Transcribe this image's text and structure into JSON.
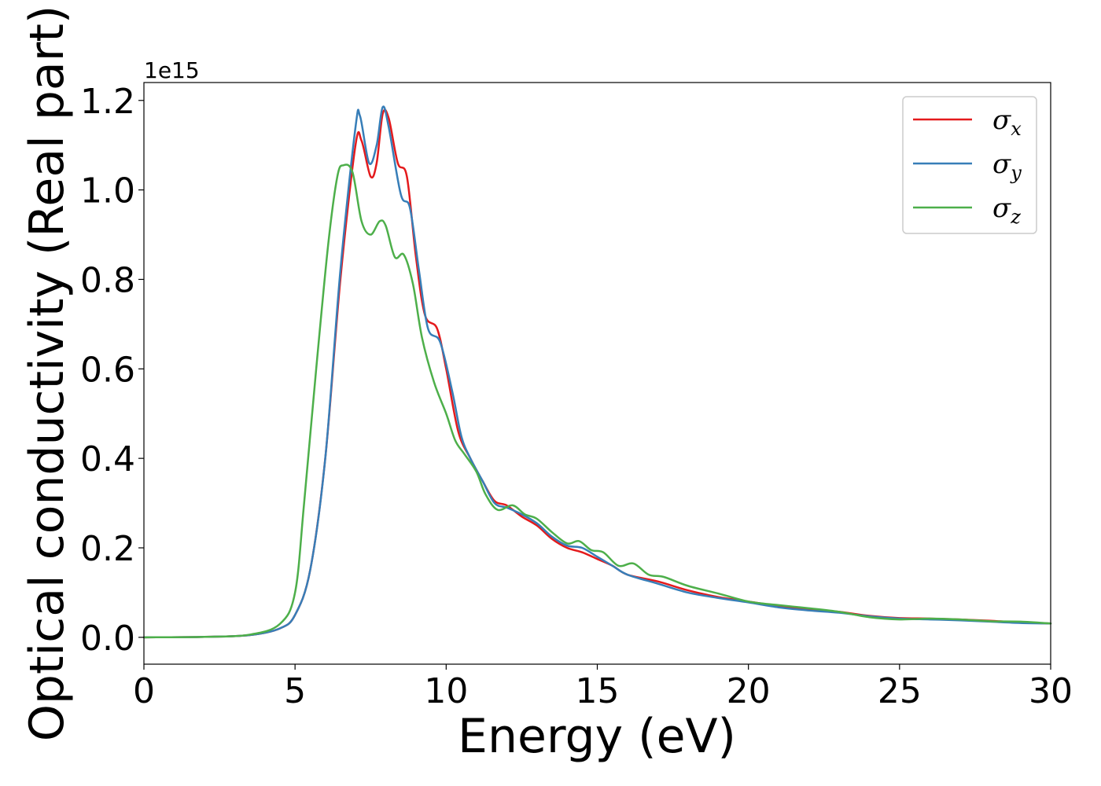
{
  "chart_data": {
    "type": "line",
    "xlabel": "Energy (eV)",
    "ylabel": "Optical conductivity (Real part)",
    "y_offset_text": "1e15",
    "xlim": [
      0,
      30
    ],
    "ylim": [
      -0.06,
      1.24
    ],
    "x_ticks": [
      0,
      5,
      10,
      15,
      20,
      25,
      30
    ],
    "x_tick_labels": [
      "0",
      "5",
      "10",
      "15",
      "20",
      "25",
      "30"
    ],
    "y_ticks": [
      0.0,
      0.2,
      0.4,
      0.6,
      0.8,
      1.0,
      1.2
    ],
    "y_tick_labels": [
      "0.0",
      "0.2",
      "0.4",
      "0.6",
      "0.8",
      "1.0",
      "1.2"
    ],
    "grid": false,
    "legend_position": "top-right",
    "series": [
      {
        "name": "σx",
        "symbol": "σ",
        "subscript": "x",
        "color": "#e41a1c",
        "points": [
          [
            0,
            0
          ],
          [
            2,
            0.001
          ],
          [
            3.5,
            0.005
          ],
          [
            4.5,
            0.02
          ],
          [
            5,
            0.05
          ],
          [
            5.5,
            0.15
          ],
          [
            6,
            0.4
          ],
          [
            6.5,
            0.8
          ],
          [
            7,
            1.1
          ],
          [
            7.2,
            1.11
          ],
          [
            7.5,
            1.03
          ],
          [
            7.7,
            1.06
          ],
          [
            7.9,
            1.17
          ],
          [
            8.1,
            1.16
          ],
          [
            8.4,
            1.06
          ],
          [
            8.7,
            1.03
          ],
          [
            9,
            0.85
          ],
          [
            9.3,
            0.72
          ],
          [
            9.7,
            0.69
          ],
          [
            10,
            0.6
          ],
          [
            10.4,
            0.46
          ],
          [
            10.8,
            0.4
          ],
          [
            11.2,
            0.35
          ],
          [
            11.6,
            0.305
          ],
          [
            12,
            0.295
          ],
          [
            12.5,
            0.27
          ],
          [
            13,
            0.25
          ],
          [
            13.5,
            0.22
          ],
          [
            14,
            0.2
          ],
          [
            14.5,
            0.19
          ],
          [
            15,
            0.175
          ],
          [
            15.5,
            0.16
          ],
          [
            16,
            0.14
          ],
          [
            17,
            0.125
          ],
          [
            18,
            0.105
          ],
          [
            19,
            0.09
          ],
          [
            20,
            0.08
          ],
          [
            21,
            0.07
          ],
          [
            22,
            0.062
          ],
          [
            23,
            0.057
          ],
          [
            24,
            0.048
          ],
          [
            25,
            0.043
          ],
          [
            26,
            0.042
          ],
          [
            27,
            0.04
          ],
          [
            28,
            0.037
          ],
          [
            29,
            0.033
          ],
          [
            30,
            0.031
          ]
        ]
      },
      {
        "name": "σy",
        "symbol": "σ",
        "subscript": "y",
        "color": "#377eb8",
        "points": [
          [
            0,
            0
          ],
          [
            2,
            0.001
          ],
          [
            3.5,
            0.005
          ],
          [
            4.5,
            0.02
          ],
          [
            5,
            0.05
          ],
          [
            5.5,
            0.15
          ],
          [
            6,
            0.4
          ],
          [
            6.5,
            0.82
          ],
          [
            7,
            1.14
          ],
          [
            7.15,
            1.165
          ],
          [
            7.45,
            1.06
          ],
          [
            7.7,
            1.1
          ],
          [
            7.9,
            1.185
          ],
          [
            8.1,
            1.14
          ],
          [
            8.5,
            0.99
          ],
          [
            8.8,
            0.96
          ],
          [
            9.1,
            0.82
          ],
          [
            9.4,
            0.69
          ],
          [
            9.8,
            0.66
          ],
          [
            10.2,
            0.55
          ],
          [
            10.5,
            0.45
          ],
          [
            10.8,
            0.4
          ],
          [
            11.2,
            0.35
          ],
          [
            11.6,
            0.3
          ],
          [
            12,
            0.29
          ],
          [
            12.5,
            0.275
          ],
          [
            13,
            0.255
          ],
          [
            13.5,
            0.225
          ],
          [
            14,
            0.205
          ],
          [
            14.5,
            0.2
          ],
          [
            15,
            0.18
          ],
          [
            15.5,
            0.16
          ],
          [
            16,
            0.14
          ],
          [
            17,
            0.12
          ],
          [
            18,
            0.1
          ],
          [
            19,
            0.088
          ],
          [
            20,
            0.078
          ],
          [
            21,
            0.067
          ],
          [
            22,
            0.06
          ],
          [
            23,
            0.055
          ],
          [
            24,
            0.047
          ],
          [
            25,
            0.042
          ],
          [
            26,
            0.04
          ],
          [
            27,
            0.038
          ],
          [
            28,
            0.035
          ],
          [
            29,
            0.032
          ],
          [
            30,
            0.031
          ]
        ]
      },
      {
        "name": "σz",
        "symbol": "σ",
        "subscript": "z",
        "color": "#4daf4a",
        "points": [
          [
            0,
            0
          ],
          [
            2,
            0.001
          ],
          [
            3.5,
            0.006
          ],
          [
            4.5,
            0.03
          ],
          [
            5,
            0.1
          ],
          [
            5.3,
            0.3
          ],
          [
            5.7,
            0.6
          ],
          [
            6.1,
            0.88
          ],
          [
            6.4,
            1.03
          ],
          [
            6.6,
            1.055
          ],
          [
            6.9,
            1.04
          ],
          [
            7.2,
            0.93
          ],
          [
            7.5,
            0.9
          ],
          [
            7.8,
            0.93
          ],
          [
            8,
            0.92
          ],
          [
            8.3,
            0.85
          ],
          [
            8.6,
            0.855
          ],
          [
            8.9,
            0.79
          ],
          [
            9.2,
            0.67
          ],
          [
            9.6,
            0.57
          ],
          [
            10,
            0.5
          ],
          [
            10.3,
            0.44
          ],
          [
            10.6,
            0.41
          ],
          [
            11,
            0.37
          ],
          [
            11.3,
            0.32
          ],
          [
            11.7,
            0.285
          ],
          [
            12.2,
            0.295
          ],
          [
            12.6,
            0.275
          ],
          [
            13,
            0.265
          ],
          [
            13.5,
            0.235
          ],
          [
            14,
            0.21
          ],
          [
            14.4,
            0.215
          ],
          [
            14.8,
            0.195
          ],
          [
            15.2,
            0.19
          ],
          [
            15.7,
            0.16
          ],
          [
            16.2,
            0.165
          ],
          [
            16.7,
            0.14
          ],
          [
            17.2,
            0.135
          ],
          [
            18,
            0.115
          ],
          [
            19,
            0.098
          ],
          [
            20,
            0.08
          ],
          [
            21,
            0.072
          ],
          [
            22,
            0.065
          ],
          [
            23,
            0.057
          ],
          [
            24,
            0.045
          ],
          [
            25,
            0.04
          ],
          [
            26,
            0.042
          ],
          [
            27,
            0.04
          ],
          [
            28,
            0.036
          ],
          [
            29,
            0.035
          ],
          [
            30,
            0.031
          ]
        ]
      }
    ]
  }
}
